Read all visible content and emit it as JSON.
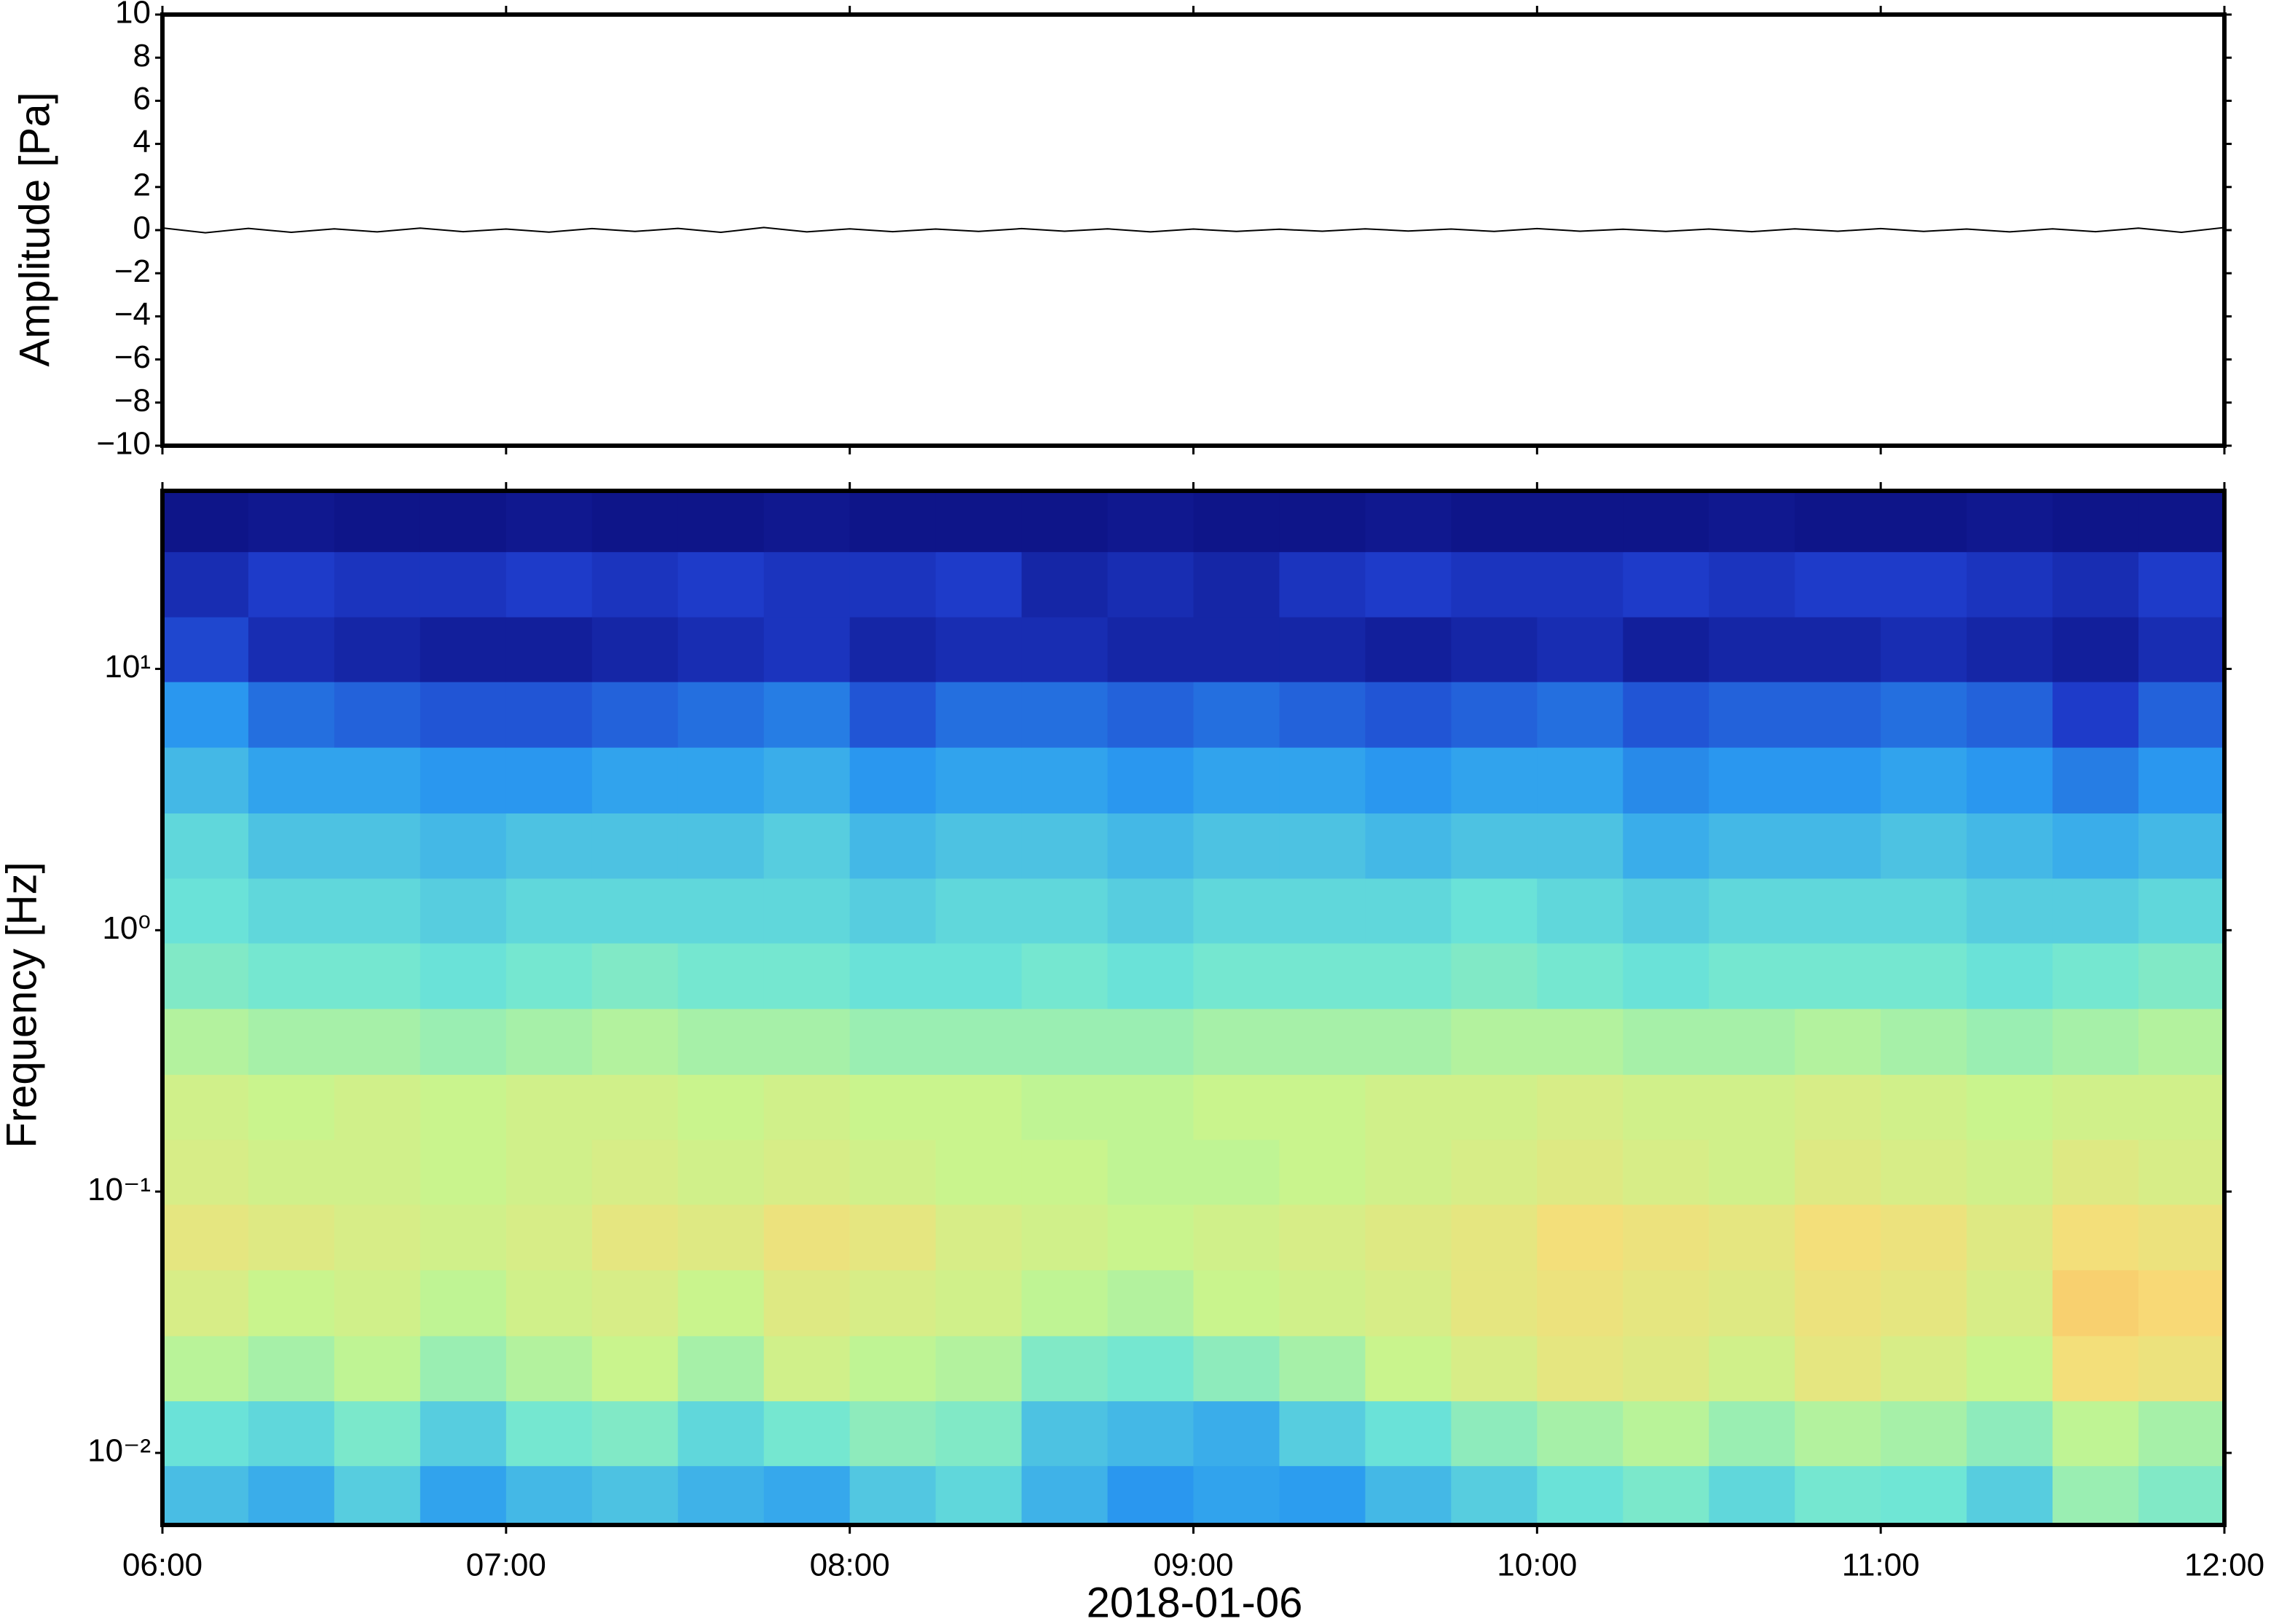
{
  "chart_data": [
    {
      "type": "line",
      "ylabel": "Amplitude [Pa]",
      "color": "#000000",
      "ylim": [
        -10,
        10
      ],
      "yticks": [
        {
          "value": -10,
          "label": "−10"
        },
        {
          "value": -8,
          "label": "−8"
        },
        {
          "value": -6,
          "label": "−6"
        },
        {
          "value": -4,
          "label": "−4"
        },
        {
          "value": -2,
          "label": "−2"
        },
        0,
        2,
        4,
        6,
        8,
        10
      ],
      "x": [
        6,
        6.125,
        6.25,
        6.375,
        6.5,
        6.625,
        6.75,
        6.875,
        7,
        7.125,
        7.25,
        7.375,
        7.5,
        7.625,
        7.75,
        7.875,
        8,
        8.125,
        8.25,
        8.375,
        8.5,
        8.625,
        8.75,
        8.875,
        9,
        9.125,
        9.25,
        9.375,
        9.5,
        9.625,
        9.75,
        9.875,
        10,
        10.125,
        10.25,
        10.375,
        10.5,
        10.625,
        10.75,
        10.875,
        11,
        11.125,
        11.25,
        11.375,
        11.5,
        11.625,
        11.75,
        11.875,
        12
      ],
      "values": [
        0.1,
        -0.12,
        0.08,
        -0.1,
        0.06,
        -0.08,
        0.09,
        -0.07,
        0.05,
        -0.09,
        0.07,
        -0.06,
        0.08,
        -0.1,
        0.12,
        -0.08,
        0.06,
        -0.07,
        0.05,
        -0.06,
        0.07,
        -0.05,
        0.06,
        -0.08,
        0.05,
        -0.06,
        0.04,
        -0.05,
        0.06,
        -0.04,
        0.05,
        -0.06,
        0.07,
        -0.05,
        0.04,
        -0.06,
        0.05,
        -0.07,
        0.06,
        -0.05,
        0.07,
        -0.06,
        0.05,
        -0.08,
        0.06,
        -0.07,
        0.09,
        -0.1,
        0.12
      ]
    },
    {
      "type": "heatmap",
      "ylabel": "Frequency [Hz]",
      "xlabel": "2018-01-06",
      "log_y": true,
      "xlim": [
        6,
        12
      ],
      "xticks": [
        {
          "value": 6,
          "label": "06:00"
        },
        {
          "value": 7,
          "label": "07:00"
        },
        {
          "value": 8,
          "label": "08:00"
        },
        {
          "value": 9,
          "label": "09:00"
        },
        {
          "value": 10,
          "label": "10:00"
        },
        {
          "value": 11,
          "label": "11:00"
        },
        {
          "value": 12,
          "label": "12:00"
        }
      ],
      "ylim": [
        0.0053,
        48
      ],
      "yticks": [
        {
          "value": 0.01,
          "label": "10⁻²"
        },
        {
          "value": 0.1,
          "label": "10⁻¹"
        },
        {
          "value": 1,
          "label": "10⁰"
        },
        {
          "value": 10,
          "label": "10¹"
        }
      ],
      "zlim": [
        0,
        100
      ],
      "colormap": [
        "#0a0a78",
        "#1e3ccb",
        "#2a9bf0",
        "#6ee6d6",
        "#c6f58e",
        "#f8dc78",
        "#f89a44",
        "#e84a20"
      ],
      "x": [
        6.125,
        6.375,
        6.625,
        6.875,
        7.125,
        7.375,
        7.625,
        7.875,
        8.125,
        8.375,
        8.625,
        8.875,
        9.125,
        9.375,
        9.625,
        9.875,
        10.125,
        10.375,
        10.625,
        10.875,
        11.125,
        11.375,
        11.625,
        11.875
      ],
      "y": [
        0.0067,
        0.0119,
        0.021,
        0.0375,
        0.067,
        0.119,
        0.21,
        0.375,
        0.67,
        1.19,
        2.1,
        3.75,
        6.7,
        11.9,
        21,
        37.5
      ],
      "z": [
        [
          35,
          32,
          38,
          30,
          34,
          36,
          33,
          31,
          37,
          40,
          33,
          28,
          30,
          29,
          34,
          38,
          42,
          45,
          40,
          44,
          43,
          38,
          50,
          46
        ],
        [
          42,
          40,
          45,
          38,
          44,
          46,
          40,
          44,
          48,
          46,
          36,
          34,
          32,
          38,
          42,
          48,
          52,
          55,
          50,
          54,
          52,
          48,
          56,
          52
        ],
        [
          55,
          52,
          56,
          50,
          54,
          58,
          52,
          60,
          56,
          54,
          46,
          44,
          48,
          52,
          58,
          62,
          66,
          64,
          60,
          66,
          62,
          58,
          70,
          68
        ],
        [
          62,
          58,
          60,
          56,
          60,
          62,
          58,
          64,
          62,
          60,
          56,
          54,
          58,
          60,
          62,
          66,
          68,
          66,
          64,
          68,
          66,
          62,
          74,
          72
        ],
        [
          66,
          64,
          62,
          60,
          62,
          66,
          64,
          68,
          66,
          62,
          60,
          58,
          60,
          62,
          64,
          66,
          70,
          68,
          66,
          70,
          68,
          64,
          70,
          68
        ],
        [
          62,
          60,
          60,
          58,
          60,
          62,
          60,
          62,
          60,
          58,
          58,
          56,
          56,
          58,
          60,
          62,
          64,
          62,
          60,
          64,
          62,
          60,
          64,
          62
        ],
        [
          60,
          58,
          60,
          58,
          60,
          60,
          58,
          60,
          58,
          58,
          56,
          56,
          58,
          58,
          60,
          60,
          62,
          60,
          60,
          62,
          60,
          58,
          60,
          60
        ],
        [
          54,
          52,
          52,
          50,
          52,
          54,
          52,
          52,
          50,
          50,
          50,
          50,
          52,
          52,
          52,
          54,
          54,
          52,
          52,
          54,
          52,
          50,
          52,
          54
        ],
        [
          46,
          44,
          44,
          42,
          44,
          46,
          44,
          44,
          42,
          42,
          44,
          42,
          44,
          44,
          44,
          46,
          44,
          42,
          44,
          44,
          44,
          42,
          44,
          46
        ],
        [
          42,
          40,
          40,
          38,
          40,
          40,
          40,
          40,
          38,
          40,
          40,
          38,
          40,
          40,
          40,
          42,
          40,
          38,
          40,
          40,
          40,
          38,
          38,
          40
        ],
        [
          40,
          36,
          36,
          34,
          36,
          36,
          36,
          38,
          34,
          36,
          36,
          34,
          36,
          36,
          34,
          36,
          36,
          32,
          34,
          34,
          36,
          34,
          32,
          34
        ],
        [
          34,
          30,
          30,
          28,
          28,
          30,
          30,
          32,
          28,
          30,
          30,
          28,
          30,
          30,
          28,
          30,
          30,
          26,
          28,
          28,
          30,
          28,
          24,
          28
        ],
        [
          28,
          22,
          20,
          18,
          18,
          20,
          22,
          24,
          18,
          22,
          22,
          20,
          22,
          20,
          18,
          20,
          22,
          18,
          20,
          20,
          22,
          20,
          14,
          20
        ],
        [
          16,
          10,
          8,
          6,
          6,
          8,
          10,
          12,
          8,
          10,
          10,
          8,
          8,
          8,
          6,
          8,
          10,
          6,
          8,
          8,
          10,
          8,
          6,
          10
        ],
        [
          10,
          14,
          12,
          12,
          14,
          12,
          14,
          12,
          12,
          14,
          8,
          10,
          8,
          12,
          14,
          12,
          12,
          14,
          12,
          14,
          14,
          12,
          10,
          14
        ],
        [
          3,
          4,
          3,
          3,
          4,
          3,
          3,
          4,
          3,
          3,
          3,
          4,
          3,
          3,
          4,
          3,
          3,
          3,
          4,
          3,
          3,
          4,
          3,
          3
        ]
      ]
    }
  ]
}
